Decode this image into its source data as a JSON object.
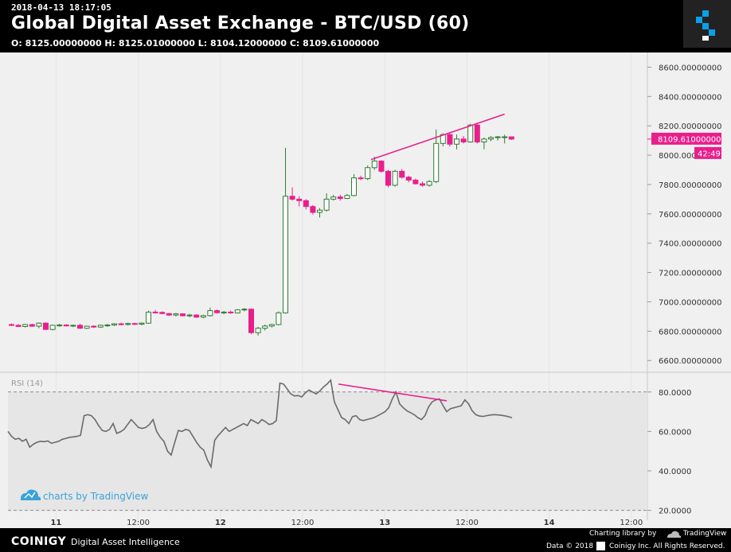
{
  "header": {
    "timestamp": "2018-04-13 18:17:05",
    "title": "Global Digital Asset Exchange - BTC/USD (60)",
    "ohlc": "O: 8125.00000000 H: 8125.01000000 L: 8104.12000000 C: 8109.61000000"
  },
  "footer": {
    "brand": "COINIGY",
    "tagline": "Digital Asset Intelligence",
    "charting_label": "Charting library by",
    "tradingview": "TradingView",
    "copyright_prefix": "Data © 2018",
    "copyright_suffix": "Coinigy Inc. All Rights Reserved."
  },
  "watermark": "charts by TradingView",
  "colors": {
    "up": "#2e7d32",
    "down": "#e91e8c",
    "rsi_line": "#6b6b6b",
    "plot_bg": "#f0f0f0",
    "rsi_band": "#e8e8e8"
  },
  "chart_data": [
    {
      "type": "candlestick",
      "title": "Global Digital Asset Exchange - BTC/USD (60)",
      "ylim": [
        6520,
        8700
      ],
      "y_ticks": [
        "8600.00000000",
        "8400.00000000",
        "8200.00000000",
        "8000.00000000",
        "7800.00000000",
        "7600.00000000",
        "7400.00000000",
        "7200.00000000",
        "7000.00000000",
        "6800.00000000",
        "6600.00000000"
      ],
      "y_tick_values": [
        8600,
        8400,
        8200,
        8000,
        7800,
        7600,
        7400,
        7200,
        7000,
        6800,
        6600
      ],
      "x_ticks": [
        "11",
        "12:00",
        "12",
        "12:00",
        "13",
        "12:00",
        "14",
        "12:00"
      ],
      "x_tick_index": [
        6.5,
        18.5,
        30.5,
        42.5,
        54.5,
        66.5,
        78.5,
        90.5
      ],
      "last_price_label": "8109.61000000",
      "last_price": 8109.61,
      "countdown": "42:49",
      "candles": [
        [
          6845,
          6852,
          6835,
          6840
        ],
        [
          6840,
          6848,
          6828,
          6832
        ],
        [
          6832,
          6850,
          6825,
          6845
        ],
        [
          6845,
          6850,
          6830,
          6834
        ],
        [
          6834,
          6860,
          6820,
          6855
        ],
        [
          6855,
          6860,
          6808,
          6812
        ],
        [
          6812,
          6845,
          6805,
          6840
        ],
        [
          6840,
          6850,
          6830,
          6842
        ],
        [
          6842,
          6848,
          6832,
          6836
        ],
        [
          6836,
          6845,
          6828,
          6840
        ],
        [
          6840,
          6850,
          6815,
          6820
        ],
        [
          6820,
          6838,
          6815,
          6834
        ],
        [
          6834,
          6840,
          6822,
          6828
        ],
        [
          6828,
          6845,
          6822,
          6840
        ],
        [
          6840,
          6850,
          6830,
          6842
        ],
        [
          6842,
          6855,
          6835,
          6850
        ],
        [
          6850,
          6858,
          6840,
          6846
        ],
        [
          6846,
          6858,
          6838,
          6852
        ],
        [
          6852,
          6858,
          6842,
          6848
        ],
        [
          6848,
          6860,
          6840,
          6855
        ],
        [
          6855,
          6940,
          6850,
          6930
        ],
        [
          6930,
          6945,
          6920,
          6928
        ],
        [
          6928,
          6935,
          6915,
          6920
        ],
        [
          6920,
          6925,
          6905,
          6910
        ],
        [
          6910,
          6925,
          6900,
          6918
        ],
        [
          6918,
          6922,
          6900,
          6905
        ],
        [
          6905,
          6918,
          6895,
          6910
        ],
        [
          6910,
          6915,
          6890,
          6896
        ],
        [
          6896,
          6912,
          6888,
          6906
        ],
        [
          6906,
          6960,
          6900,
          6940
        ],
        [
          6940,
          6948,
          6920,
          6926
        ],
        [
          6926,
          6938,
          6915,
          6930
        ],
        [
          6930,
          6940,
          6918,
          6925
        ],
        [
          6925,
          6950,
          6920,
          6945
        ],
        [
          6945,
          6958,
          6935,
          6950
        ],
        [
          6950,
          6955,
          6780,
          6790
        ],
        [
          6790,
          6830,
          6770,
          6820
        ],
        [
          6820,
          6845,
          6805,
          6835
        ],
        [
          6835,
          6850,
          6825,
          6845
        ],
        [
          6845,
          6935,
          6840,
          6925
        ],
        [
          6925,
          8050,
          6920,
          7720
        ],
        [
          7720,
          7780,
          7690,
          7700
        ],
        [
          7700,
          7720,
          7650,
          7690
        ],
        [
          7690,
          7700,
          7630,
          7650
        ],
        [
          7650,
          7660,
          7595,
          7610
        ],
        [
          7610,
          7640,
          7575,
          7625
        ],
        [
          7625,
          7740,
          7615,
          7700
        ],
        [
          7700,
          7730,
          7690,
          7715
        ],
        [
          7715,
          7730,
          7690,
          7705
        ],
        [
          7705,
          7735,
          7700,
          7725
        ],
        [
          7725,
          7870,
          7720,
          7845
        ],
        [
          7845,
          7860,
          7830,
          7840
        ],
        [
          7840,
          7930,
          7830,
          7915
        ],
        [
          7915,
          7990,
          7900,
          7960
        ],
        [
          7960,
          7965,
          7880,
          7890
        ],
        [
          7890,
          7900,
          7780,
          7795
        ],
        [
          7795,
          7900,
          7785,
          7890
        ],
        [
          7890,
          7905,
          7840,
          7850
        ],
        [
          7850,
          7860,
          7815,
          7830
        ],
        [
          7830,
          7840,
          7800,
          7805
        ],
        [
          7805,
          7820,
          7785,
          7795
        ],
        [
          7795,
          7830,
          7785,
          7820
        ],
        [
          7820,
          8175,
          7810,
          8080
        ],
        [
          8080,
          8150,
          8060,
          8140
        ],
        [
          8140,
          8150,
          8060,
          8075
        ],
        [
          8075,
          8140,
          8040,
          8110
        ],
        [
          8110,
          8130,
          8080,
          8090
        ],
        [
          8090,
          8215,
          8085,
          8205
        ],
        [
          8205,
          8215,
          8080,
          8090
        ],
        [
          8090,
          8120,
          8040,
          8110
        ],
        [
          8110,
          8130,
          8095,
          8120
        ],
        [
          8120,
          8130,
          8100,
          8125
        ],
        [
          8125,
          8140,
          8080,
          8125
        ],
        [
          8125,
          8125,
          8104.12,
          8109.61
        ]
      ],
      "trendline": {
        "from_index": 52.5,
        "from_price": 7970,
        "to_index": 72,
        "to_price": 8280
      }
    },
    {
      "type": "line",
      "title": "RSI (14)",
      "ylim": [
        15,
        90
      ],
      "y_ticks": [
        "80.0000",
        "60.0000",
        "40.0000",
        "20.0000"
      ],
      "y_tick_values": [
        80,
        60,
        40,
        20
      ],
      "band": [
        20,
        80
      ],
      "values": [
        60,
        57.5,
        56,
        56.5,
        55,
        56,
        52,
        53.5,
        54.5,
        55,
        54.8,
        55.2,
        54,
        54.5,
        55,
        56,
        56.5,
        57,
        57.2,
        57.5,
        58,
        68,
        68.5,
        68,
        66,
        63,
        60.5,
        60,
        61,
        64,
        59,
        59.8,
        61,
        63.5,
        66,
        64,
        62,
        61.5,
        62,
        63.5,
        66,
        60,
        57,
        55,
        50,
        48,
        54.5,
        60.5,
        60,
        61,
        60.5,
        57.5,
        54.5,
        52,
        50.5,
        45.5,
        42,
        55.5,
        58,
        60,
        62,
        60,
        61,
        62,
        63,
        64,
        63,
        66,
        65,
        64,
        66,
        65,
        63.5,
        64,
        65.5,
        84.5,
        84,
        81.5,
        79,
        78,
        78.2,
        77.5,
        79.5,
        81,
        80,
        79,
        80.5,
        82.5,
        84,
        86,
        75,
        71,
        67,
        66,
        64,
        67.5,
        68,
        66,
        65.5,
        66,
        66.5,
        67,
        68,
        69,
        70,
        72,
        76.5,
        80,
        74,
        72,
        70.5,
        69.5,
        68.5,
        67,
        66,
        68,
        72.5,
        75,
        76,
        76.5,
        73,
        70,
        71.5,
        72,
        72.5,
        73,
        76,
        74,
        70.5,
        68.5,
        67.8,
        67.6,
        68,
        68.3,
        68.5,
        68.4,
        68.2,
        67.9,
        67.5,
        66.9
      ],
      "trendline": {
        "from_x": 0.5168,
        "from_value": 84,
        "to_x": 0.6861,
        "to_value": 75.5
      }
    }
  ]
}
